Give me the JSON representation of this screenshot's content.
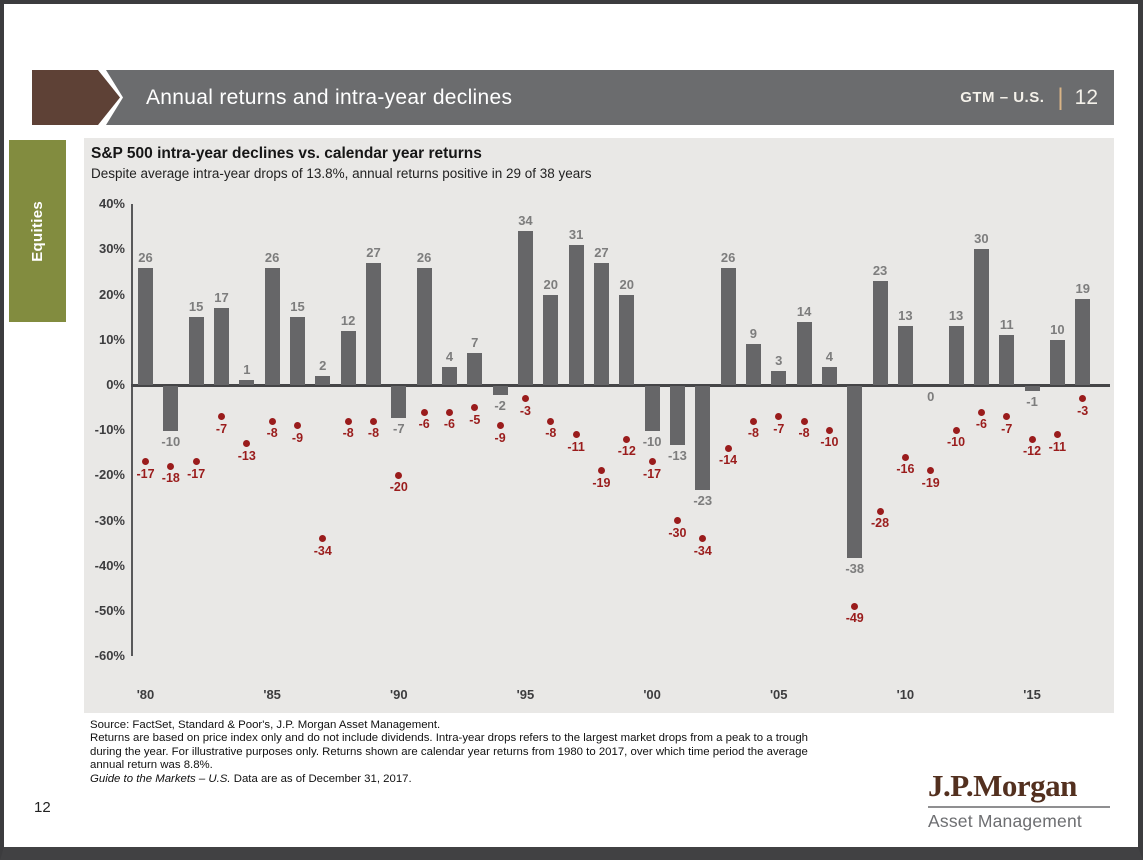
{
  "header": {
    "title": "Annual returns and intra-year declines",
    "gtm_label": "GTM – U.S.",
    "gtm_pipe": "|",
    "gtm_page": "12"
  },
  "sidebar": {
    "tab_label": "Equities"
  },
  "chart": {
    "title": "S&P 500 intra-year declines vs. calendar year returns",
    "subtitle": "Despite average intra-year drops of 13.8%, annual returns positive in 29 of 38 years"
  },
  "chart_data": {
    "type": "bar",
    "title": "S&P 500 intra-year declines vs. calendar year returns",
    "x": [
      1980,
      1981,
      1982,
      1983,
      1984,
      1985,
      1986,
      1987,
      1988,
      1989,
      1990,
      1991,
      1992,
      1993,
      1994,
      1995,
      1996,
      1997,
      1998,
      1999,
      2000,
      2001,
      2002,
      2003,
      2004,
      2005,
      2006,
      2007,
      2008,
      2009,
      2010,
      2011,
      2012,
      2013,
      2014,
      2015,
      2016,
      2017
    ],
    "series": [
      {
        "name": "Calendar year returns",
        "type": "bar",
        "values": [
          26,
          -10,
          15,
          17,
          1,
          26,
          15,
          2,
          12,
          27,
          -7,
          26,
          4,
          7,
          -2,
          34,
          20,
          31,
          27,
          20,
          -10,
          -13,
          -23,
          26,
          9,
          3,
          14,
          4,
          -38,
          23,
          13,
          0,
          13,
          30,
          11,
          -1,
          10,
          19
        ]
      },
      {
        "name": "Intra-year declines",
        "type": "scatter",
        "values": [
          -17,
          -18,
          -17,
          -7,
          -13,
          -8,
          -9,
          -34,
          -8,
          -8,
          -20,
          -6,
          -6,
          -5,
          -9,
          -3,
          -8,
          -11,
          -19,
          -12,
          -17,
          -30,
          -34,
          -14,
          -8,
          -7,
          -8,
          -10,
          -49,
          -28,
          -16,
          -19,
          -10,
          -6,
          -7,
          -12,
          -11,
          -3
        ]
      }
    ],
    "y_ticks": [
      40,
      30,
      20,
      10,
      0,
      -10,
      -20,
      -30,
      -40,
      -50,
      -60
    ],
    "y_tick_suffix": "%",
    "ylim": [
      -60,
      40
    ],
    "x_ticks": [
      {
        "label": "'80",
        "year": 1980
      },
      {
        "label": "'85",
        "year": 1985
      },
      {
        "label": "'90",
        "year": 1990
      },
      {
        "label": "'95",
        "year": 1995
      },
      {
        "label": "'00",
        "year": 2000
      },
      {
        "label": "'05",
        "year": 2005
      },
      {
        "label": "'10",
        "year": 2010
      },
      {
        "label": "'15",
        "year": 2015
      }
    ],
    "grid": false,
    "legend": "none",
    "colors": {
      "bar": "#666668",
      "dot": "#9a1c1c",
      "bar_label": "#7d7d7d",
      "panel_bg": "#e9e8e6"
    }
  },
  "footer": {
    "lines": [
      "Source: FactSet, Standard & Poor's, J.P. Morgan Asset Management.",
      "Returns are based on price index only and do not include dividends. Intra-year drops refers to the largest market drops from a peak to a trough",
      "during the year. For illustrative purposes only. Returns shown are calendar year returns from 1980 to 2017, over which time period the average",
      "annual return was 8.8%."
    ],
    "gtm_italic": "Guide to the Markets – U.S.",
    "gtm_rest": " Data are as of December 31, 2017."
  },
  "page_number": "12",
  "logo": {
    "brand": "J.P.Morgan",
    "division": "Asset Management"
  }
}
